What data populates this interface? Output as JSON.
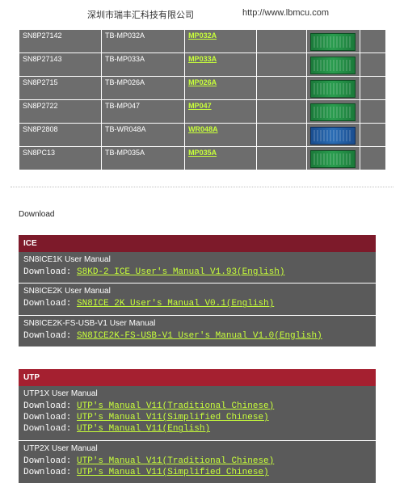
{
  "header": {
    "company": "深圳市瑞丰汇科技有限公司",
    "url": "http://www.lbmcu.com"
  },
  "products": {
    "rows": [
      {
        "part": "SN8P27142",
        "board": "TB-MP032A",
        "link": "MP032A",
        "pcb": "green"
      },
      {
        "part": "SN8P27143",
        "board": "TB-MP033A",
        "link": "MP033A",
        "pcb": "green"
      },
      {
        "part": "SN8P2715",
        "board": "TB-MP026A",
        "link": "MP026A",
        "pcb": "green"
      },
      {
        "part": "SN8P2722",
        "board": "TB-MP047",
        "link": "MP047",
        "pcb": "green"
      },
      {
        "part": "SN8P2808",
        "board": "TB-WR048A",
        "link": "WR048A",
        "pcb": "blue"
      },
      {
        "part": "SN8PC13",
        "board": "TB-MP035A",
        "link": "MP035A",
        "pcb": "green"
      }
    ]
  },
  "download_heading": "Download",
  "labels": {
    "download_prefix": "Download: "
  },
  "sections": {
    "ice": {
      "title": "ICE",
      "items": [
        {
          "title": "SN8ICE1K User Manual",
          "links": [
            "S8KD-2 ICE User's Manual V1.93(English)"
          ]
        },
        {
          "title": "SN8ICE2K User Manual",
          "links": [
            "SN8ICE 2K User's Manual V0.1(English)"
          ]
        },
        {
          "title": "SN8ICE2K-FS-USB-V1 User Manual",
          "links": [
            "SN8ICE2K-FS-USB-V1 User's Manual V1.0(English)"
          ]
        }
      ]
    },
    "utp": {
      "title": "UTP",
      "items": [
        {
          "title": "UTP1X User Manual",
          "links": [
            "UTP's Manual V11(Traditional Chinese)",
            "UTP's Manual V11(Simplified Chinese)",
            "UTP's Manual V11(English)"
          ]
        },
        {
          "title": "UTP2X User Manual",
          "links": [
            "UTP's Manual V11(Traditional Chinese)",
            "UTP's Manual V11(Simplified Chinese)"
          ]
        }
      ]
    }
  },
  "colors": {
    "table_bg": "#6d6d6d",
    "link_color": "#c8ff3a",
    "ice_header": "#7d1a2a",
    "utp_header": "#a52030",
    "section_body": "#5a5a5a"
  }
}
